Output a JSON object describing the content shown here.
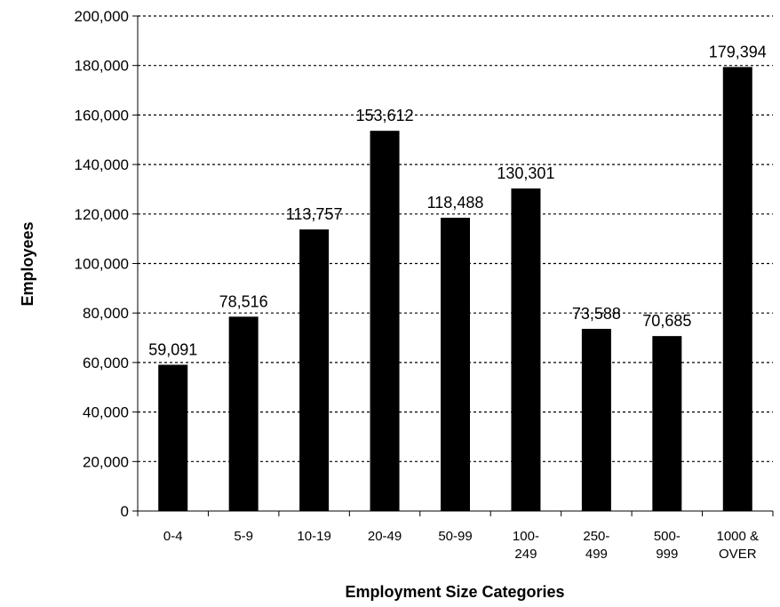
{
  "chart_data": {
    "type": "bar",
    "title": "",
    "xlabel": "Employment Size Categories",
    "ylabel": "Employees",
    "categories": [
      "0-4",
      "5-9",
      "10-19",
      "20-49",
      "50-99",
      "100-249",
      "250-499",
      "500-999",
      "1000 & OVER"
    ],
    "category_lines": [
      [
        "0-4"
      ],
      [
        "5-9"
      ],
      [
        "10-19"
      ],
      [
        "20-49"
      ],
      [
        "50-99"
      ],
      [
        "100-",
        "249"
      ],
      [
        "250-",
        "499"
      ],
      [
        "500-",
        "999"
      ],
      [
        "1000 &",
        "OVER"
      ]
    ],
    "values": [
      59091,
      78516,
      113757,
      153612,
      118488,
      130301,
      73588,
      70685,
      179394
    ],
    "data_labels": [
      "59,091",
      "78,516",
      "113,757",
      "153,612",
      "118,488",
      "130,301",
      "73,588",
      "70,685",
      "179,394"
    ],
    "ylim": [
      0,
      200000
    ],
    "yticks": [
      0,
      20000,
      40000,
      60000,
      80000,
      100000,
      120000,
      140000,
      160000,
      180000,
      200000
    ],
    "ytick_labels": [
      "0",
      "20,000",
      "40,000",
      "60,000",
      "80,000",
      "100,000",
      "120,000",
      "140,000",
      "160,000",
      "180,000",
      "200,000"
    ],
    "grid": true,
    "grid_style": "dotted",
    "bar_color": "#000000",
    "legend": false
  }
}
